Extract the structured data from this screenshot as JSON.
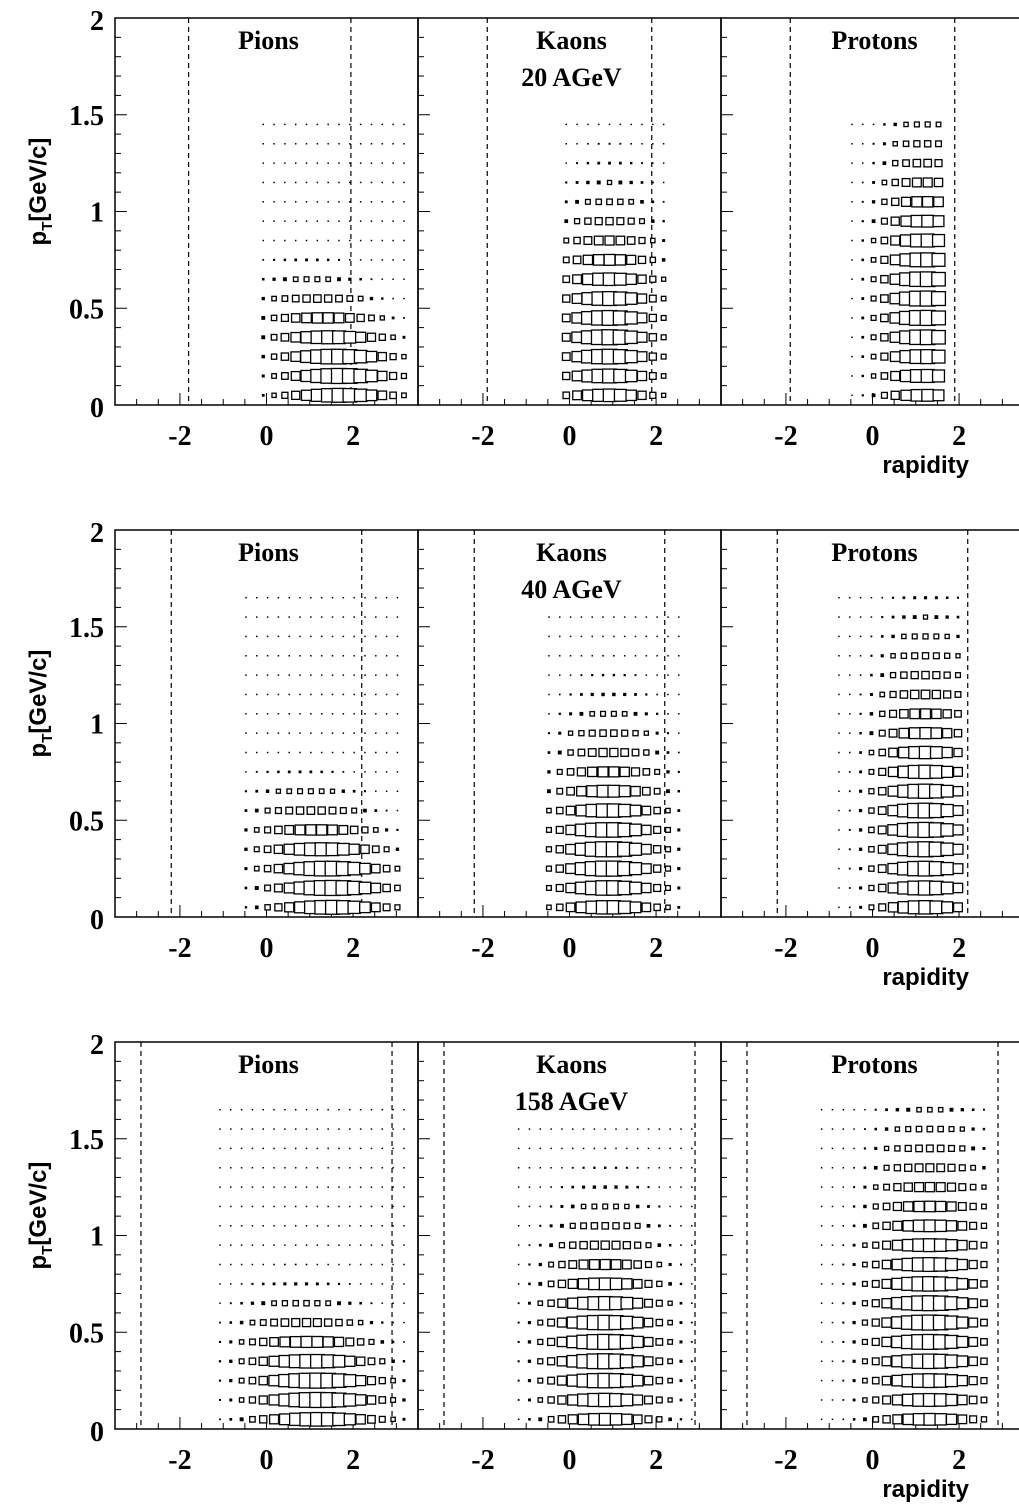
{
  "chart_data": [
    {
      "type": "box",
      "energy_label": "20 AGeV",
      "ylabel": "p",
      "ylabel_sub": "T",
      "ylabel_unit": "[GeV/c]",
      "xlabel": "rapidity",
      "ylim": [
        0,
        2
      ],
      "yticks": [
        "0",
        "0.5",
        "1",
        "1.5",
        "2"
      ],
      "xticks": [
        "-2",
        "0",
        "2"
      ],
      "panels": [
        {
          "title": "Pions",
          "xlim": [
            -3.5,
            3.5
          ],
          "cuts": [
            -1.8,
            1.95
          ],
          "y_range": [
            -0.2,
            3.2
          ],
          "peak_y": 1.7,
          "peak_pt": 0.18,
          "sy": 0.7,
          "spt": 0.22,
          "ypull": 1.4,
          "pt_max": 1.5
        },
        {
          "title": "Kaons",
          "xlim": [
            -3.5,
            3.5
          ],
          "cuts": [
            -1.9,
            1.9
          ],
          "y_range": [
            -0.2,
            2.2
          ],
          "peak_y": 0.9,
          "peak_pt": 0.35,
          "sy": 0.6,
          "spt": 0.35,
          "ypull": 0,
          "pt_max": 1.5
        },
        {
          "title": "Protons",
          "xlim": [
            -3.5,
            3.5
          ],
          "cuts": [
            -1.9,
            1.9
          ],
          "y_range": [
            -0.6,
            1.7
          ],
          "peak_y": 1.2,
          "peak_pt": 0.5,
          "sy": 0.55,
          "spt": 0.45,
          "ypull": 0,
          "pt_max": 1.5
        }
      ]
    },
    {
      "type": "box",
      "energy_label": "40 AGeV",
      "ylabel": "p",
      "ylabel_sub": "T",
      "ylabel_unit": "[GeV/c]",
      "xlabel": "rapidity",
      "ylim": [
        0,
        2
      ],
      "yticks": [
        "0",
        "0.5",
        "1",
        "1.5",
        "2"
      ],
      "xticks": [
        "-2",
        "0",
        "2"
      ],
      "panels": [
        {
          "title": "Pions",
          "xlim": [
            -3.5,
            3.5
          ],
          "cuts": [
            -2.2,
            2.2
          ],
          "y_range": [
            -0.6,
            3.2
          ],
          "peak_y": 1.5,
          "peak_pt": 0.18,
          "sy": 0.75,
          "spt": 0.22,
          "ypull": 1.3,
          "pt_max": 1.7
        },
        {
          "title": "Kaons",
          "xlim": [
            -3.5,
            3.5
          ],
          "cuts": [
            -2.2,
            2.2
          ],
          "y_range": [
            -0.6,
            2.6
          ],
          "peak_y": 0.9,
          "peak_pt": 0.3,
          "sy": 0.65,
          "spt": 0.35,
          "ypull": 0,
          "pt_max": 1.6
        },
        {
          "title": "Protons",
          "xlim": [
            -3.5,
            3.5
          ],
          "cuts": [
            -2.2,
            2.2
          ],
          "y_range": [
            -0.9,
            2.1
          ],
          "peak_y": 1.2,
          "peak_pt": 0.4,
          "sy": 0.6,
          "spt": 0.5,
          "ypull": 0,
          "pt_max": 1.7
        }
      ]
    },
    {
      "type": "box",
      "energy_label": "158 AGeV",
      "ylabel": "p",
      "ylabel_sub": "T",
      "ylabel_unit": "[GeV/c]",
      "xlabel": "rapidity",
      "ylim": [
        0,
        2
      ],
      "yticks": [
        "0",
        "0.5",
        "1",
        "1.5",
        "2"
      ],
      "xticks": [
        "-2",
        "0",
        "2"
      ],
      "panels": [
        {
          "title": "Pions",
          "xlim": [
            -3.5,
            3.5
          ],
          "cuts": [
            -2.9,
            2.9
          ],
          "y_range": [
            -1.2,
            3.3
          ],
          "peak_y": 1.2,
          "peak_pt": 0.2,
          "sy": 0.8,
          "spt": 0.22,
          "ypull": 0.9,
          "pt_max": 1.7
        },
        {
          "title": "Kaons",
          "xlim": [
            -3.5,
            3.5
          ],
          "cuts": [
            -2.9,
            2.9
          ],
          "y_range": [
            -1.3,
            3.0
          ],
          "peak_y": 0.8,
          "peak_pt": 0.4,
          "sy": 0.7,
          "spt": 0.35,
          "ypull": 0,
          "pt_max": 1.6
        },
        {
          "title": "Protons",
          "xlim": [
            -3.5,
            3.5
          ],
          "cuts": [
            -2.9,
            2.9
          ],
          "y_range": [
            -1.3,
            2.7
          ],
          "peak_y": 1.3,
          "peak_pt": 0.55,
          "sy": 0.7,
          "spt": 0.5,
          "ypull": 0,
          "pt_max": 1.7
        }
      ]
    }
  ]
}
